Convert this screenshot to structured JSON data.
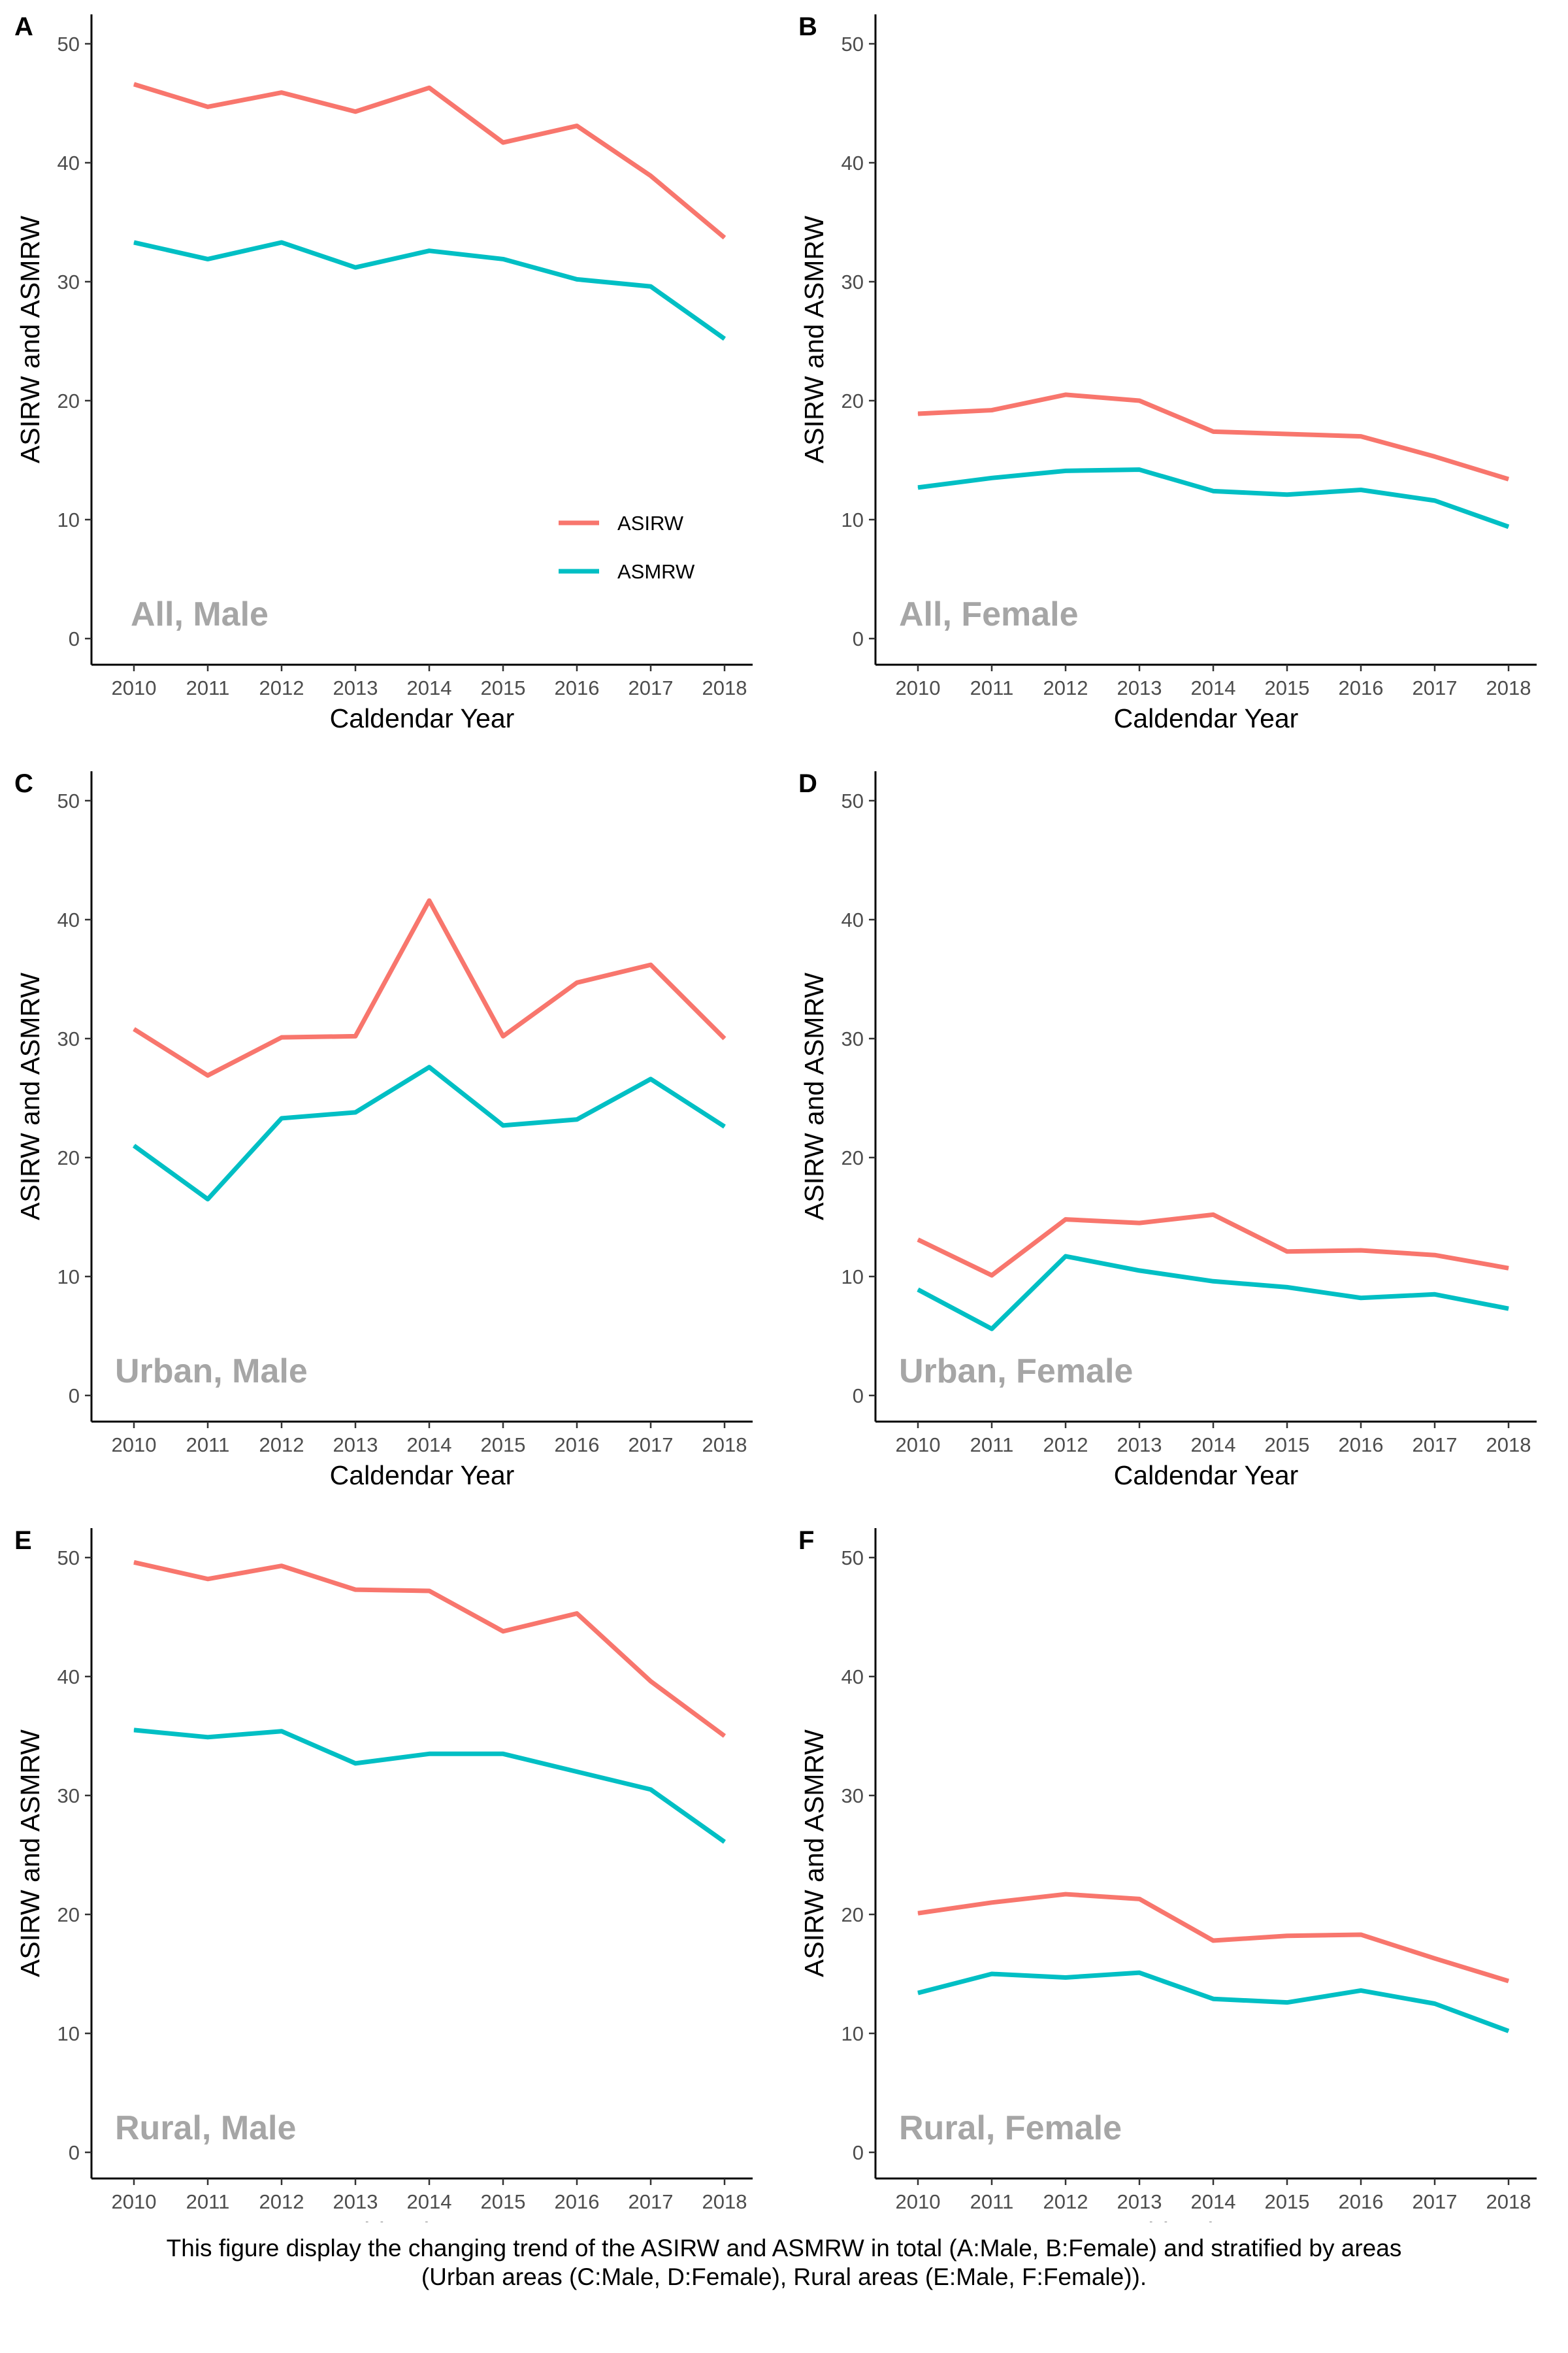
{
  "figure": {
    "colors": {
      "ASIRW": "#F8766D",
      "ASMRW": "#00BFC4",
      "panel_label": "#A6A6A6"
    },
    "legend": {
      "panel": "A",
      "placement": "bottom-right",
      "entries": [
        "ASIRW",
        "ASMRW"
      ]
    }
  },
  "chart_data": [
    {
      "panel_letter": "A",
      "panel_label": "All, Male",
      "type": "line",
      "xlabel": "Caldendar Year",
      "ylabel": "ASIRW and ASMRW",
      "x": [
        2010,
        2011,
        2012,
        2013,
        2014,
        2015,
        2016,
        2017,
        2018
      ],
      "ylim": [
        0,
        52
      ],
      "yticks": [
        0,
        10,
        20,
        30,
        40,
        50
      ],
      "grid": false,
      "series": [
        {
          "name": "ASIRW",
          "values": [
            46.6,
            44.7,
            45.9,
            44.3,
            46.3,
            41.7,
            43.1,
            38.9,
            33.7
          ]
        },
        {
          "name": "ASMRW",
          "values": [
            33.3,
            31.9,
            33.3,
            31.2,
            32.6,
            31.9,
            30.2,
            29.6,
            25.2
          ]
        }
      ]
    },
    {
      "panel_letter": "B",
      "panel_label": "All, Female",
      "type": "line",
      "xlabel": "Caldendar Year",
      "ylabel": "ASIRW and ASMRW",
      "x": [
        2010,
        2011,
        2012,
        2013,
        2014,
        2015,
        2016,
        2017,
        2018
      ],
      "ylim": [
        0,
        52
      ],
      "yticks": [
        0,
        10,
        20,
        30,
        40,
        50
      ],
      "grid": false,
      "series": [
        {
          "name": "ASIRW",
          "values": [
            18.9,
            19.2,
            20.5,
            20.0,
            17.4,
            17.2,
            17.0,
            15.3,
            13.4
          ]
        },
        {
          "name": "ASMRW",
          "values": [
            12.7,
            13.5,
            14.1,
            14.2,
            12.4,
            12.1,
            12.5,
            11.6,
            9.4
          ]
        }
      ]
    },
    {
      "panel_letter": "C",
      "panel_label": "Urban, Male",
      "type": "line",
      "xlabel": "Caldendar Year",
      "ylabel": "ASIRW and ASMRW",
      "x": [
        2010,
        2011,
        2012,
        2013,
        2014,
        2015,
        2016,
        2017,
        2018
      ],
      "ylim": [
        0,
        52
      ],
      "yticks": [
        0,
        10,
        20,
        30,
        40,
        50
      ],
      "grid": false,
      "series": [
        {
          "name": "ASIRW",
          "values": [
            30.8,
            26.9,
            30.1,
            30.2,
            41.6,
            30.2,
            34.7,
            36.2,
            30.0
          ]
        },
        {
          "name": "ASMRW",
          "values": [
            21.0,
            16.5,
            23.3,
            23.8,
            27.6,
            22.7,
            23.2,
            26.6,
            22.6
          ]
        }
      ]
    },
    {
      "panel_letter": "D",
      "panel_label": "Urban, Female",
      "type": "line",
      "xlabel": "Caldendar Year",
      "ylabel": "ASIRW and ASMRW",
      "x": [
        2010,
        2011,
        2012,
        2013,
        2014,
        2015,
        2016,
        2017,
        2018
      ],
      "ylim": [
        0,
        52
      ],
      "yticks": [
        0,
        10,
        20,
        30,
        40,
        50
      ],
      "grid": false,
      "series": [
        {
          "name": "ASIRW",
          "values": [
            13.1,
            10.1,
            14.8,
            14.5,
            15.2,
            12.1,
            12.2,
            11.8,
            10.7
          ]
        },
        {
          "name": "ASMRW",
          "values": [
            8.9,
            5.6,
            11.7,
            10.5,
            9.6,
            9.1,
            8.2,
            8.5,
            7.3
          ]
        }
      ]
    },
    {
      "panel_letter": "E",
      "panel_label": "Rural, Male",
      "type": "line",
      "xlabel": "Caldendar Year",
      "ylabel": "ASIRW and ASMRW",
      "x": [
        2010,
        2011,
        2012,
        2013,
        2014,
        2015,
        2016,
        2017,
        2018
      ],
      "ylim": [
        0,
        52
      ],
      "yticks": [
        0,
        10,
        20,
        30,
        40,
        50
      ],
      "grid": false,
      "series": [
        {
          "name": "ASIRW",
          "values": [
            49.6,
            48.2,
            49.3,
            47.3,
            47.2,
            43.8,
            45.3,
            39.6,
            35.0
          ]
        },
        {
          "name": "ASMRW",
          "values": [
            35.5,
            34.9,
            35.4,
            32.7,
            33.5,
            33.5,
            32.0,
            30.5,
            26.1
          ]
        }
      ]
    },
    {
      "panel_letter": "F",
      "panel_label": "Rural, Female",
      "type": "line",
      "xlabel": "Caldendar Year",
      "ylabel": "ASIRW and ASMRW",
      "x": [
        2010,
        2011,
        2012,
        2013,
        2014,
        2015,
        2016,
        2017,
        2018
      ],
      "ylim": [
        0,
        52
      ],
      "yticks": [
        0,
        10,
        20,
        30,
        40,
        50
      ],
      "grid": false,
      "series": [
        {
          "name": "ASIRW",
          "values": [
            20.1,
            21.0,
            21.7,
            21.3,
            17.8,
            18.2,
            18.3,
            16.3,
            14.4
          ]
        },
        {
          "name": "ASMRW",
          "values": [
            13.4,
            15.0,
            14.7,
            15.1,
            12.9,
            12.6,
            13.6,
            12.5,
            10.2
          ]
        }
      ]
    }
  ],
  "caption": {
    "line1": "This figure display the changing trend of the ASIRW and ASMRW in total (A:Male, B:Female) and stratified by areas",
    "line2": "(Urban areas (C:Male, D:Female), Rural areas (E:Male, F:Female))."
  }
}
